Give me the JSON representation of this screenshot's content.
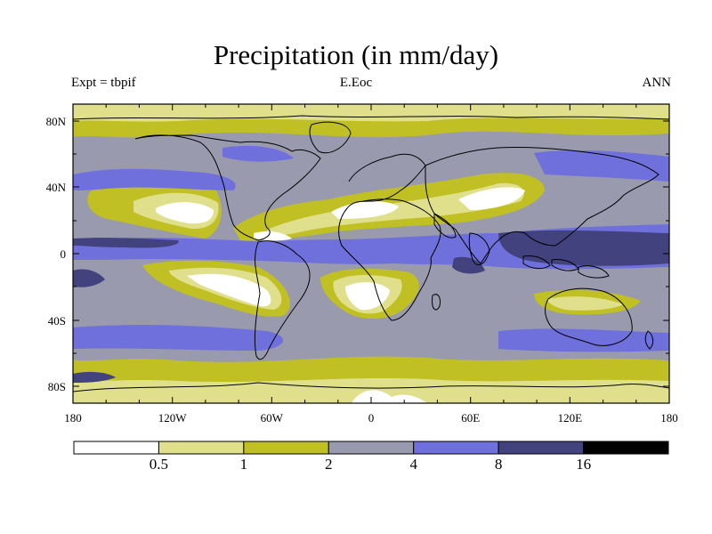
{
  "title": "Precipitation (in mm/day)",
  "experiment": "Expt = tbpif",
  "case": "E.Eoc",
  "season": "ANN",
  "map": {
    "projection": "cylindrical equidistant",
    "lon_range": [
      -180,
      180
    ],
    "lat_range": [
      -90,
      90
    ],
    "lon_tick_labels": [
      "180",
      "120W",
      "60W",
      "0",
      "60E",
      "120E",
      "180"
    ],
    "lat_tick_labels": [
      "80N",
      "40N",
      "0",
      "40S",
      "80S"
    ]
  },
  "colorbar": {
    "levels": [
      "0.5",
      "1",
      "2",
      "4",
      "8",
      "16"
    ],
    "colors": [
      "#ffffff",
      "#e0e08c",
      "#c0c024",
      "#9a9aae",
      "#7070dc",
      "#42427e",
      "#000000"
    ]
  },
  "legend_values_mm_per_day": [
    0.5,
    1,
    2,
    4,
    8,
    16
  ]
}
